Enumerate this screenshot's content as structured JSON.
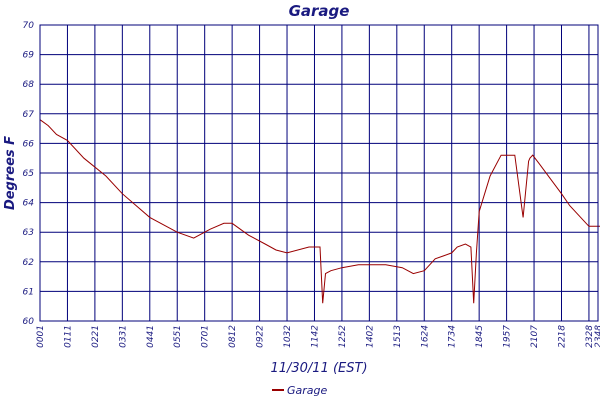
{
  "chart_data": {
    "type": "line",
    "title": "Garage",
    "xlabel": "11/30/11 (EST)",
    "ylabel": "Degrees F",
    "ylim": [
      60,
      70
    ],
    "yticks": [
      "60",
      "61",
      "62",
      "63",
      "64",
      "65",
      "66",
      "67",
      "68",
      "69",
      "70"
    ],
    "xticks": [
      "0001",
      "0111",
      "0221",
      "0331",
      "0441",
      "0551",
      "0701",
      "0812",
      "0922",
      "1032",
      "1142",
      "1252",
      "1402",
      "1513",
      "1624",
      "1734",
      "1845",
      "1957",
      "2107",
      "2218",
      "2328",
      "2348"
    ],
    "grid": true,
    "legend_position": "bottom-center",
    "series": [
      {
        "name": "Garage",
        "color": "#990000",
        "x": [
          0,
          0.3,
          0.6,
          1.0,
          1.6,
          2.4,
          3.0,
          4.0,
          5.0,
          5.6,
          6.2,
          6.7,
          7.0,
          7.6,
          8.2,
          8.6,
          9.0,
          9.8,
          10.2,
          10.3,
          10.4,
          10.6,
          11.0,
          11.6,
          12.6,
          13.2,
          13.6,
          14.0,
          14.4,
          14.7,
          15.0,
          15.2,
          15.5,
          15.7,
          15.8,
          15.9,
          16.0,
          16.4,
          16.8,
          17.3,
          17.6,
          17.8,
          17.85,
          17.95,
          18.2,
          18.6,
          19.0,
          19.3,
          20.0,
          20.4,
          21.0,
          21.4,
          21.9,
          22.0,
          22.33
        ],
        "y": [
          66.8,
          66.6,
          66.3,
          66.1,
          65.5,
          64.9,
          64.3,
          63.5,
          63.0,
          62.8,
          63.1,
          63.3,
          63.3,
          62.9,
          62.6,
          62.4,
          62.3,
          62.5,
          62.5,
          60.6,
          61.6,
          61.7,
          61.8,
          61.9,
          61.9,
          61.8,
          61.6,
          61.7,
          62.1,
          62.2,
          62.3,
          62.5,
          62.6,
          62.5,
          60.6,
          62.3,
          63.7,
          64.9,
          65.6,
          65.6,
          63.5,
          65.4,
          65.5,
          65.6,
          65.3,
          64.8,
          64.3,
          63.9,
          63.2,
          63.2,
          63.3,
          63.3,
          62.9,
          62.8,
          62.7
        ]
      }
    ]
  }
}
